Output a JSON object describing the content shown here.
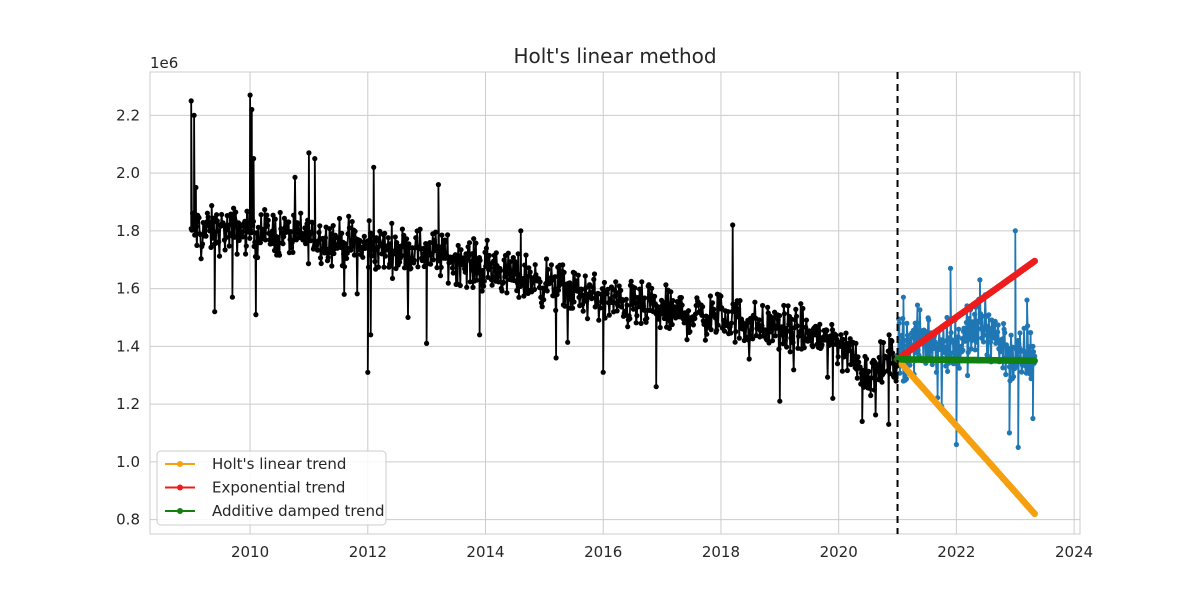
{
  "chart_data": {
    "type": "line",
    "title": "Holt's linear method",
    "xlabel": "",
    "ylabel": "",
    "y_offset_label": "1e6",
    "xlim": [
      2008.3,
      2024.1
    ],
    "ylim": [
      0.75,
      2.35
    ],
    "x_ticks": [
      2010,
      2012,
      2014,
      2016,
      2018,
      2020,
      2022,
      2024
    ],
    "x_tick_labels": [
      "2010",
      "2012",
      "2014",
      "2016",
      "2018",
      "2020",
      "2022",
      "2024"
    ],
    "y_ticks": [
      0.8,
      1.0,
      1.2,
      1.4,
      1.6,
      1.8,
      2.0,
      2.2
    ],
    "y_tick_labels": [
      "0.8",
      "1.0",
      "1.2",
      "1.4",
      "1.6",
      "1.8",
      "2.0",
      "2.2"
    ],
    "grid": true,
    "legend_position": "bottom-left",
    "forecast_start_line": {
      "x": 2021.0,
      "style": "dashed",
      "color": "#000000"
    },
    "series": [
      {
        "role": "training",
        "color": "#000000",
        "x_range": [
          2009.0,
          2021.0
        ],
        "trend_anchors": {
          "x": [
            2009.0,
            2010.0,
            2011.0,
            2012.0,
            2013.0,
            2014.0,
            2015.0,
            2016.0,
            2017.0,
            2018.0,
            2019.0,
            2020.0,
            2020.5,
            2021.0
          ],
          "y": [
            1.8,
            1.8,
            1.78,
            1.74,
            1.73,
            1.67,
            1.62,
            1.56,
            1.52,
            1.5,
            1.46,
            1.42,
            1.3,
            1.37
          ]
        },
        "noise_amplitude": 0.06,
        "spikes": [
          {
            "x": 2009.0,
            "y": 2.25
          },
          {
            "x": 2009.05,
            "y": 2.2
          },
          {
            "x": 2009.08,
            "y": 1.95
          },
          {
            "x": 2010.0,
            "y": 2.27
          },
          {
            "x": 2010.03,
            "y": 2.22
          },
          {
            "x": 2010.06,
            "y": 2.05
          },
          {
            "x": 2011.0,
            "y": 2.07
          },
          {
            "x": 2011.1,
            "y": 2.05
          },
          {
            "x": 2012.1,
            "y": 2.02
          },
          {
            "x": 2013.2,
            "y": 1.96
          },
          {
            "x": 2014.6,
            "y": 1.8
          },
          {
            "x": 2018.2,
            "y": 1.82
          },
          {
            "x": 2009.7,
            "y": 1.57
          },
          {
            "x": 2009.4,
            "y": 1.52
          },
          {
            "x": 2010.1,
            "y": 1.51
          },
          {
            "x": 2011.6,
            "y": 1.58
          },
          {
            "x": 2012.0,
            "y": 1.31
          },
          {
            "x": 2012.05,
            "y": 1.44
          },
          {
            "x": 2013.0,
            "y": 1.41
          },
          {
            "x": 2013.9,
            "y": 1.44
          },
          {
            "x": 2015.2,
            "y": 1.36
          },
          {
            "x": 2016.0,
            "y": 1.31
          },
          {
            "x": 2016.9,
            "y": 1.26
          },
          {
            "x": 2019.0,
            "y": 1.21
          },
          {
            "x": 2019.9,
            "y": 1.22
          },
          {
            "x": 2020.4,
            "y": 1.14
          },
          {
            "x": 2020.85,
            "y": 1.13
          }
        ]
      },
      {
        "role": "test",
        "color": "#1f77b4",
        "x_range": [
          2021.0,
          2023.33
        ],
        "trend_anchors": {
          "x": [
            2021.0,
            2021.5,
            2022.0,
            2022.5,
            2023.0,
            2023.33
          ],
          "y": [
            1.4,
            1.42,
            1.4,
            1.48,
            1.35,
            1.38
          ]
        },
        "noise_amplitude": 0.08,
        "spikes": [
          {
            "x": 2021.1,
            "y": 1.57
          },
          {
            "x": 2021.9,
            "y": 1.67
          },
          {
            "x": 2022.0,
            "y": 1.06
          },
          {
            "x": 2022.4,
            "y": 1.63
          },
          {
            "x": 2022.9,
            "y": 1.1
          },
          {
            "x": 2023.0,
            "y": 1.8
          },
          {
            "x": 2023.05,
            "y": 1.05
          },
          {
            "x": 2023.2,
            "y": 1.56
          },
          {
            "x": 2023.3,
            "y": 1.15
          }
        ]
      },
      {
        "name": "Holt's linear trend",
        "color": "#f5a00f",
        "x": [
          2021.0,
          2023.33
        ],
        "values": [
          1.355,
          0.82
        ]
      },
      {
        "name": "Exponential trend",
        "color": "#ee1c1c",
        "x": [
          2021.0,
          2023.33
        ],
        "values": [
          1.355,
          1.695
        ]
      },
      {
        "name": "Additive damped trend",
        "color": "#118011",
        "x": [
          2021.0,
          2023.33
        ],
        "values": [
          1.355,
          1.35
        ]
      }
    ]
  }
}
